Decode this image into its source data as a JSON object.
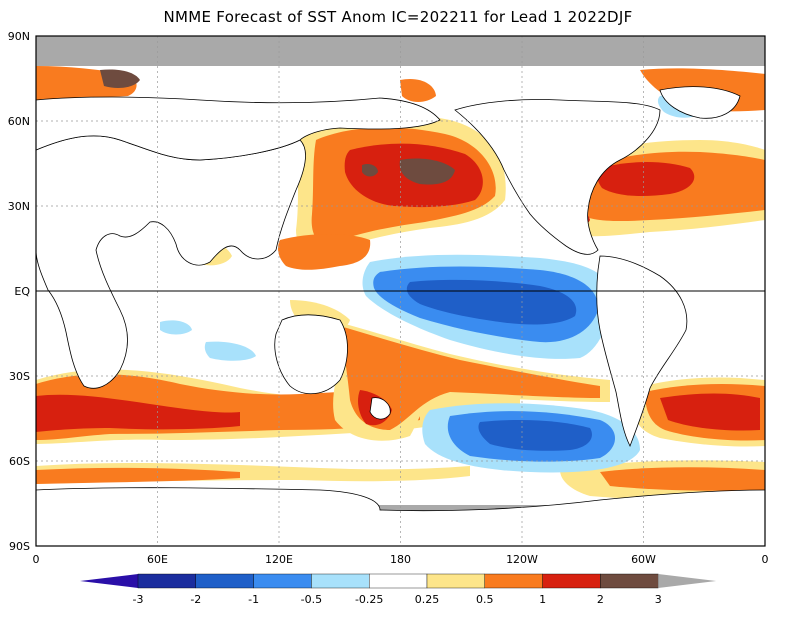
{
  "title": "NMME Forecast of SST Anom IC=202211 for Lead 1 2022DJF",
  "lat_labels": [
    "90N",
    "60N",
    "30N",
    "EQ",
    "30S",
    "60S",
    "90S"
  ],
  "lon_labels": [
    "0",
    "60E",
    "120E",
    "180",
    "120W",
    "60W",
    "0"
  ],
  "colorbar": {
    "labels": [
      "-3",
      "-2",
      "-1",
      "-0.5",
      "-0.25",
      "0.25",
      "0.5",
      "1",
      "2",
      "3"
    ],
    "colors": [
      "#1b2d9e",
      "#1f5fc8",
      "#3a8cf0",
      "#a8e1fb",
      "#ffffff",
      "#fde58a",
      "#f97b1f",
      "#d7200f",
      "#6e4b3f",
      "#a9a9a9"
    ],
    "under_color": "#2a0fa8",
    "over_color": "#a9a9a9"
  },
  "anomaly_colors": {
    "land": "#ffffff",
    "sea_ice": "#a9a9a9",
    "warm_weak": "#fde58a",
    "warm_moderate": "#f97b1f",
    "warm_strong": "#d7200f",
    "warm_extreme": "#6e4b3f",
    "cool_weak": "#a8e1fb",
    "cool_moderate": "#3a8cf0",
    "cool_strong": "#1f5fc8"
  }
}
